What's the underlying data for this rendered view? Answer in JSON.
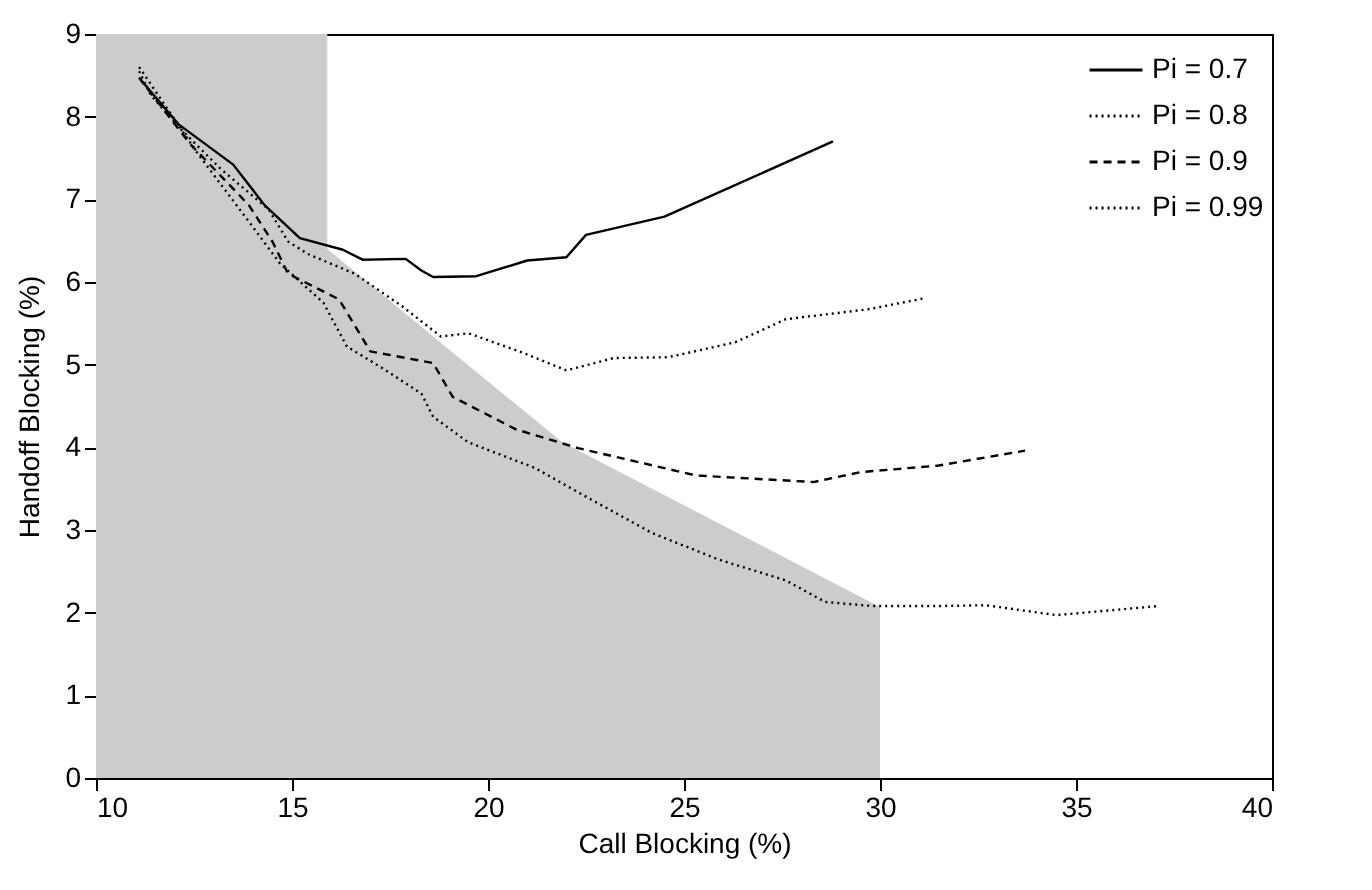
{
  "chart_data": {
    "type": "line",
    "xlabel": "Call Blocking (%)",
    "ylabel": "Handoff Blocking (%)",
    "xlim": [
      10,
      40
    ],
    "xticks": [
      10,
      15,
      20,
      25,
      30,
      35,
      40
    ],
    "ylim": [
      0,
      9
    ],
    "yticks": [
      0,
      1,
      2,
      3,
      4,
      5,
      6,
      7,
      8,
      9
    ],
    "grid": false,
    "legend": "top right",
    "series": [
      {
        "type": "area",
        "color": "#cccccc",
        "x": [
          10,
          15.9,
          15.9,
          18.6,
          21.9,
          30
        ],
        "values": [
          9,
          9,
          6.4,
          5.34,
          4.06,
          2.07
        ]
      },
      {
        "name": "Pi = 0.7",
        "color": "#000000",
        "line_style": "solid",
        "x": [
          11.1,
          12.1,
          13.5,
          14.3,
          15.2,
          16.3,
          16.8,
          17.9,
          18.3,
          18.6,
          19.7,
          21,
          22,
          22.5,
          24.5,
          28.8
        ],
        "values": [
          8.47,
          7.91,
          7.42,
          6.93,
          6.53,
          6.39,
          6.27,
          6.28,
          6.14,
          6.06,
          6.07,
          6.26,
          6.3,
          6.57,
          6.79,
          7.7
        ]
      },
      {
        "name": "Pi = 0.8",
        "color": "#000000",
        "line_style": "dotted",
        "x": [
          11.1,
          11.4,
          12.2,
          13.2,
          14.4,
          14.9,
          15.4,
          16.6,
          17.8,
          18.8,
          19.5,
          20.8,
          22,
          23.2,
          24.6,
          26.3,
          27.6,
          29.7,
          31.1
        ],
        "values": [
          8.55,
          8.26,
          7.83,
          7.36,
          6.88,
          6.49,
          6.34,
          6.1,
          5.71,
          5.34,
          5.38,
          5.16,
          4.93,
          5.08,
          5.09,
          5.27,
          5.55,
          5.67,
          5.8
        ]
      },
      {
        "name": "Pi = 0.9",
        "color": "#000000",
        "line_style": "dashed",
        "x": [
          11.1,
          12.4,
          13.9,
          14.5,
          14.9,
          16.2,
          17,
          18.6,
          19.1,
          20.7,
          22.3,
          25.3,
          28.3,
          29.5,
          31.5,
          33.7
        ],
        "values": [
          8.47,
          7.67,
          6.93,
          6.49,
          6.1,
          5.79,
          5.16,
          5.02,
          4.61,
          4.22,
          3.99,
          3.66,
          3.58,
          3.7,
          3.78,
          3.96
        ]
      },
      {
        "name": "Pi = 0.99",
        "color": "#000000",
        "line_style": "dotted",
        "x": [
          11.1,
          12.6,
          13.9,
          14.7,
          15.8,
          16.4,
          17.3,
          18.3,
          18.6,
          19.5,
          21.2,
          22.7,
          24.2,
          25.9,
          27.6,
          28.6,
          29.8,
          31.5,
          32.7,
          34.5,
          37.1
        ],
        "values": [
          8.6,
          7.55,
          6.73,
          6.22,
          5.75,
          5.22,
          4.96,
          4.65,
          4.37,
          4.06,
          3.75,
          3.35,
          2.96,
          2.64,
          2.39,
          2.13,
          2.08,
          2.08,
          2.09,
          1.97,
          2.08
        ]
      }
    ]
  }
}
